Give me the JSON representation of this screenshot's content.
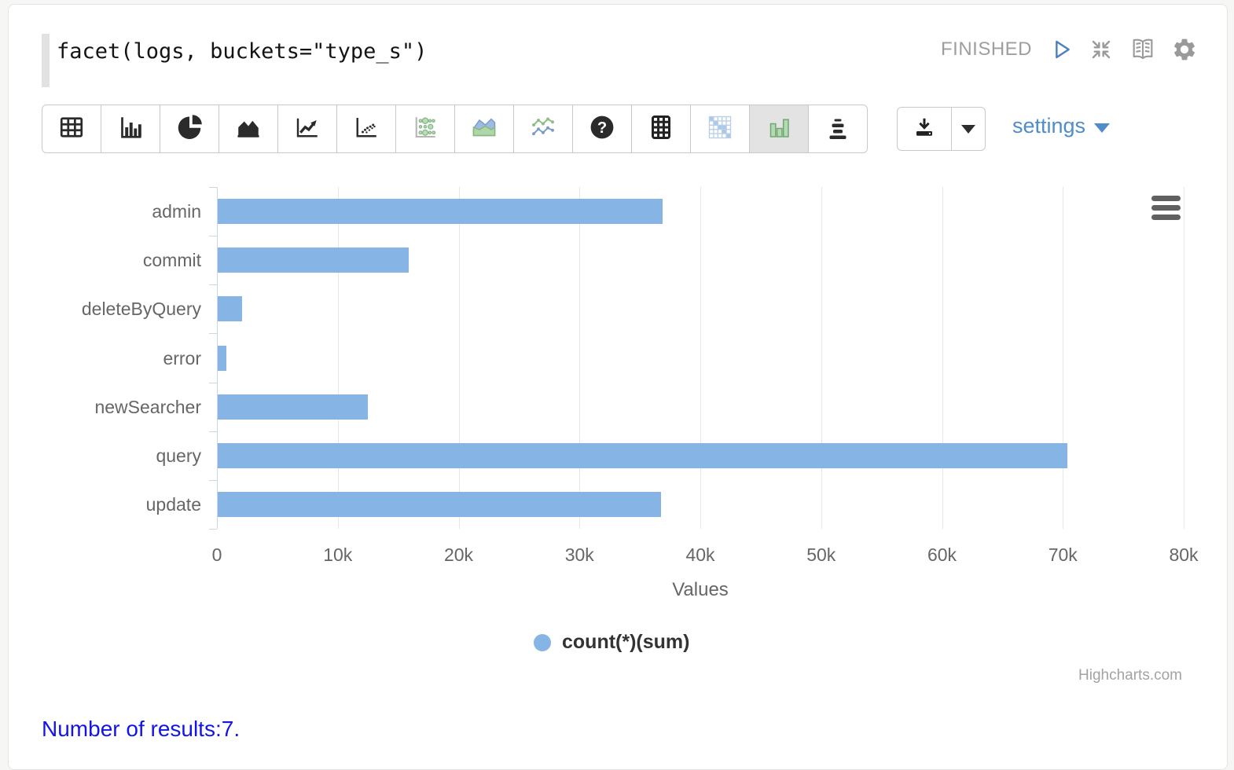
{
  "query": {
    "text": "facet(logs, buckets=\"type_s\")"
  },
  "status": {
    "label": "FINISHED",
    "icons": [
      "play-icon",
      "collapse-icon",
      "book-icon",
      "gear-icon"
    ]
  },
  "toolbar": {
    "settings_label": "settings",
    "buttons": [
      {
        "name": "table",
        "icon": "table-icon",
        "selected": false
      },
      {
        "name": "bar-chart",
        "icon": "bar-chart-icon",
        "selected": false
      },
      {
        "name": "pie-chart",
        "icon": "pie-chart-icon",
        "selected": false
      },
      {
        "name": "area-chart",
        "icon": "area-chart-icon",
        "selected": false
      },
      {
        "name": "line-chart",
        "icon": "line-chart-icon",
        "selected": false
      },
      {
        "name": "scatter-plot",
        "icon": "scatter-icon",
        "selected": false
      },
      {
        "name": "bubble-matrix",
        "icon": "bubble-matrix-icon",
        "selected": false
      },
      {
        "name": "multi-area-chart",
        "icon": "multi-area-icon",
        "selected": false
      },
      {
        "name": "multi-line-chart",
        "icon": "multi-line-icon",
        "selected": false
      },
      {
        "name": "help",
        "icon": "help-icon",
        "selected": false
      },
      {
        "name": "pivot-table",
        "icon": "pivot-table-icon",
        "selected": false
      },
      {
        "name": "heatmap",
        "icon": "heatmap-icon",
        "selected": false
      },
      {
        "name": "facet-bar-chart",
        "icon": "green-bars-icon",
        "selected": true
      },
      {
        "name": "funnel",
        "icon": "funnel-icon",
        "selected": false
      }
    ],
    "download_icon": "download-icon",
    "download_caret_icon": "chevron-down-icon"
  },
  "chart_data": {
    "type": "bar",
    "orientation": "horizontal",
    "title": "",
    "categories": [
      "admin",
      "commit",
      "deleteByQuery",
      "error",
      "newSearcher",
      "query",
      "update"
    ],
    "series": [
      {
        "name": "count(*)(sum)",
        "values": [
          36800,
          15800,
          2000,
          700,
          12400,
          70300,
          36700
        ]
      }
    ],
    "xlabel": "Values",
    "ylabel": "",
    "xlim": [
      0,
      80000
    ],
    "x_tick_labels": [
      "0",
      "10k",
      "20k",
      "30k",
      "40k",
      "50k",
      "60k",
      "70k",
      "80k"
    ],
    "grid": true,
    "legend_position": "bottom-center",
    "bar_color": "#86b4e5",
    "axis_line_color": "#ccd6eb",
    "gridline_color": "#e7e7e7",
    "credit": "Highcharts.com"
  },
  "footer": {
    "results_text": "Number of results:7."
  },
  "colors": {
    "settings_blue": "#4e8dc9",
    "results_blue": "#1315e8",
    "status_gray": "#9e9e9e"
  }
}
